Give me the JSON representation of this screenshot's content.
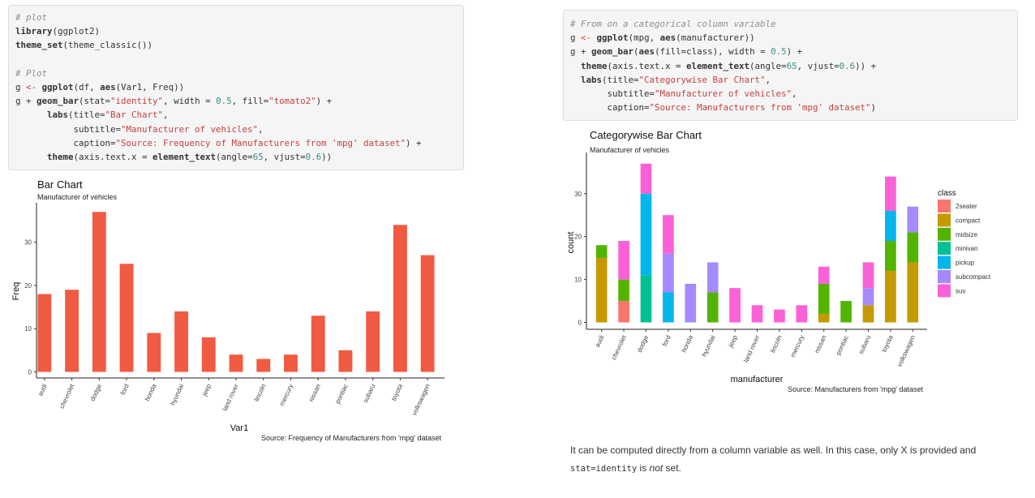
{
  "code1": {
    "lines": [
      [
        {
          "t": "# plot",
          "c": "cm"
        }
      ],
      [
        {
          "t": "library",
          "c": "fn"
        },
        {
          "t": "(ggplot2)",
          "c": ""
        }
      ],
      [
        {
          "t": "theme_set",
          "c": "fn"
        },
        {
          "t": "(theme_classic())",
          "c": ""
        }
      ],
      [],
      [
        {
          "t": "# Plot",
          "c": "cm"
        }
      ],
      [
        {
          "t": "g ",
          "c": ""
        },
        {
          "t": "<-",
          "c": "asg"
        },
        {
          "t": " ",
          "c": ""
        },
        {
          "t": "ggplot",
          "c": "fn"
        },
        {
          "t": "(df, ",
          "c": ""
        },
        {
          "t": "aes",
          "c": "fn"
        },
        {
          "t": "(Var1, Freq))",
          "c": ""
        }
      ],
      [
        {
          "t": "g + ",
          "c": ""
        },
        {
          "t": "geom_bar",
          "c": "fn"
        },
        {
          "t": "(stat=",
          "c": ""
        },
        {
          "t": "\"identity\"",
          "c": "str"
        },
        {
          "t": ", width = ",
          "c": ""
        },
        {
          "t": "0.5",
          "c": "num"
        },
        {
          "t": ", fill=",
          "c": ""
        },
        {
          "t": "\"tomato2\"",
          "c": "str"
        },
        {
          "t": ") +",
          "c": ""
        }
      ],
      [
        {
          "t": "      labs",
          "c": "fn"
        },
        {
          "t": "(title=",
          "c": ""
        },
        {
          "t": "\"Bar Chart\"",
          "c": "str"
        },
        {
          "t": ",",
          "c": ""
        }
      ],
      [
        {
          "t": "           subtitle=",
          "c": ""
        },
        {
          "t": "\"Manufacturer of vehicles\"",
          "c": "str"
        },
        {
          "t": ",",
          "c": ""
        }
      ],
      [
        {
          "t": "           caption=",
          "c": ""
        },
        {
          "t": "\"Source: Frequency of Manufacturers from 'mpg' dataset\"",
          "c": "str"
        },
        {
          "t": ") +",
          "c": ""
        }
      ],
      [
        {
          "t": "      theme",
          "c": "fn"
        },
        {
          "t": "(axis.text.x = ",
          "c": ""
        },
        {
          "t": "element_text",
          "c": "fn"
        },
        {
          "t": "(angle=",
          "c": ""
        },
        {
          "t": "65",
          "c": "num"
        },
        {
          "t": ", vjust=",
          "c": ""
        },
        {
          "t": "0.6",
          "c": "num"
        },
        {
          "t": "))",
          "c": ""
        }
      ]
    ]
  },
  "code2": {
    "lines": [
      [
        {
          "t": "# From on a categorical column variable",
          "c": "cm"
        }
      ],
      [
        {
          "t": "g ",
          "c": ""
        },
        {
          "t": "<-",
          "c": "asg"
        },
        {
          "t": " ",
          "c": ""
        },
        {
          "t": "ggplot",
          "c": "fn"
        },
        {
          "t": "(mpg, ",
          "c": ""
        },
        {
          "t": "aes",
          "c": "fn"
        },
        {
          "t": "(manufacturer))",
          "c": ""
        }
      ],
      [
        {
          "t": "g + ",
          "c": ""
        },
        {
          "t": "geom_bar",
          "c": "fn"
        },
        {
          "t": "(",
          "c": ""
        },
        {
          "t": "aes",
          "c": "fn"
        },
        {
          "t": "(fill=class), width = ",
          "c": ""
        },
        {
          "t": "0.5",
          "c": "num"
        },
        {
          "t": ") +",
          "c": ""
        }
      ],
      [
        {
          "t": "  theme",
          "c": "fn"
        },
        {
          "t": "(axis.text.x = ",
          "c": ""
        },
        {
          "t": "element_text",
          "c": "fn"
        },
        {
          "t": "(angle=",
          "c": ""
        },
        {
          "t": "65",
          "c": "num"
        },
        {
          "t": ", vjust=",
          "c": ""
        },
        {
          "t": "0.6",
          "c": "num"
        },
        {
          "t": ")) +",
          "c": ""
        }
      ],
      [
        {
          "t": "  labs",
          "c": "fn"
        },
        {
          "t": "(title=",
          "c": ""
        },
        {
          "t": "\"Categorywise Bar Chart\"",
          "c": "str"
        },
        {
          "t": ",",
          "c": ""
        }
      ],
      [
        {
          "t": "       subtitle=",
          "c": ""
        },
        {
          "t": "\"Manufacturer of vehicles\"",
          "c": "str"
        },
        {
          "t": ",",
          "c": ""
        }
      ],
      [
        {
          "t": "       caption=",
          "c": ""
        },
        {
          "t": "\"Source: Manufacturers from 'mpg' dataset\"",
          "c": "str"
        },
        {
          "t": ")",
          "c": ""
        }
      ]
    ]
  },
  "chart_data": [
    {
      "type": "bar",
      "title": "Bar Chart",
      "subtitle": "Manufacturer of vehicles",
      "caption": "Source: Frequency of Manufacturers from 'mpg' dataset",
      "xlabel": "Var1",
      "ylabel": "Freq",
      "categories": [
        "audi",
        "chevrolet",
        "dodge",
        "ford",
        "honda",
        "hyundai",
        "jeep",
        "land rover",
        "lincoln",
        "mercury",
        "nissan",
        "pontiac",
        "subaru",
        "toyota",
        "volkswagen"
      ],
      "values": [
        18,
        19,
        37,
        25,
        9,
        14,
        8,
        4,
        3,
        4,
        13,
        5,
        14,
        34,
        27
      ],
      "ylim": [
        0,
        37
      ],
      "yticks": [
        0,
        10,
        20,
        30
      ],
      "bar_color": "#f05a42",
      "grid": false
    },
    {
      "type": "bar",
      "stacked": true,
      "title": "Categorywise Bar Chart",
      "subtitle": "Manufacturer of vehicles",
      "caption": "Source: Manufacturers from 'mpg' dataset",
      "xlabel": "manufacturer",
      "ylabel": "count",
      "legend_title": "class",
      "legend_position": "right",
      "categories": [
        "audi",
        "chevrolet",
        "dodge",
        "ford",
        "honda",
        "hyundai",
        "jeep",
        "land rover",
        "lincoln",
        "mercury",
        "nissan",
        "pontiac",
        "subaru",
        "toyota",
        "volkswagen"
      ],
      "series": [
        {
          "name": "2seater",
          "color": "#f8766d",
          "values": [
            0,
            5,
            0,
            0,
            0,
            0,
            0,
            0,
            0,
            0,
            0,
            0,
            0,
            0,
            0
          ]
        },
        {
          "name": "compact",
          "color": "#c49a00",
          "values": [
            15,
            0,
            0,
            0,
            0,
            0,
            0,
            0,
            0,
            0,
            2,
            0,
            4,
            12,
            14
          ]
        },
        {
          "name": "midsize",
          "color": "#53b400",
          "values": [
            3,
            5,
            0,
            0,
            0,
            7,
            0,
            0,
            0,
            0,
            7,
            5,
            0,
            7,
            7
          ]
        },
        {
          "name": "minivan",
          "color": "#00c094",
          "values": [
            0,
            0,
            11,
            0,
            0,
            0,
            0,
            0,
            0,
            0,
            0,
            0,
            0,
            0,
            0
          ]
        },
        {
          "name": "pickup",
          "color": "#00b6eb",
          "values": [
            0,
            0,
            19,
            7,
            0,
            0,
            0,
            0,
            0,
            0,
            0,
            0,
            0,
            7,
            0
          ]
        },
        {
          "name": "subcompact",
          "color": "#a58aff",
          "values": [
            0,
            0,
            0,
            9,
            9,
            7,
            0,
            0,
            0,
            0,
            0,
            0,
            4,
            0,
            6
          ]
        },
        {
          "name": "suv",
          "color": "#fb61d7",
          "values": [
            0,
            9,
            7,
            9,
            0,
            0,
            8,
            4,
            3,
            4,
            4,
            0,
            6,
            8,
            0
          ]
        }
      ],
      "ylim": [
        0,
        37
      ],
      "yticks": [
        0,
        10,
        20,
        30
      ],
      "grid": false
    }
  ],
  "prose": {
    "part1": "It can be computed directly from a column variable as well. In this case, only X is provided and",
    "code": "stat=identity",
    "part2": " is ",
    "em": "not",
    "part3": " set."
  }
}
